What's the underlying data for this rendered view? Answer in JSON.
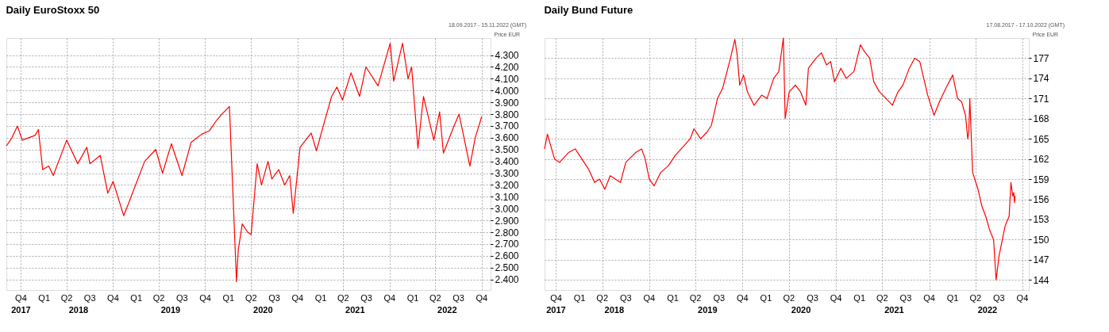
{
  "chart_data": [
    {
      "type": "line",
      "title": "Daily EuroStoxx 50",
      "subtitle": "18.09.2017 - 15.11.2022 (GMT)",
      "ylabel": "Price EUR",
      "x": [
        "2017-09-18",
        "2017-10-10",
        "2017-11-01",
        "2017-11-20",
        "2017-12-15",
        "2018-01-10",
        "2018-01-23",
        "2018-02-09",
        "2018-03-05",
        "2018-03-23",
        "2018-05-15",
        "2018-06-28",
        "2018-08-03",
        "2018-08-15",
        "2018-09-25",
        "2018-10-25",
        "2018-11-15",
        "2018-12-27",
        "2019-01-20",
        "2019-03-20",
        "2019-05-03",
        "2019-05-30",
        "2019-07-04",
        "2019-08-15",
        "2019-09-20",
        "2019-11-01",
        "2019-12-02",
        "2019-12-31",
        "2020-01-20",
        "2020-02-19",
        "2020-03-18",
        "2020-03-25",
        "2020-04-10",
        "2020-05-01",
        "2020-05-15",
        "2020-06-08",
        "2020-06-25",
        "2020-07-21",
        "2020-08-05",
        "2020-09-01",
        "2020-09-25",
        "2020-10-15",
        "2020-10-29",
        "2020-11-25",
        "2021-01-08",
        "2021-01-29",
        "2021-02-25",
        "2021-03-30",
        "2021-04-20",
        "2021-05-12",
        "2021-06-15",
        "2021-07-19",
        "2021-08-13",
        "2021-09-30",
        "2021-11-17",
        "2021-12-01",
        "2022-01-05",
        "2022-01-27",
        "2022-02-10",
        "2022-03-07",
        "2022-03-29",
        "2022-05-09",
        "2022-06-01",
        "2022-06-16",
        "2022-07-28",
        "2022-08-17",
        "2022-09-29",
        "2022-10-20",
        "2022-11-15"
      ],
      "series": [
        {
          "color": "#ff0000",
          "values": [
            3530,
            3600,
            3700,
            3580,
            3600,
            3620,
            3670,
            3330,
            3360,
            3280,
            3580,
            3380,
            3520,
            3380,
            3450,
            3130,
            3230,
            2940,
            3070,
            3400,
            3500,
            3300,
            3550,
            3280,
            3560,
            3630,
            3660,
            3750,
            3800,
            3865,
            2380,
            2650,
            2870,
            2800,
            2780,
            3380,
            3200,
            3400,
            3250,
            3330,
            3200,
            3280,
            2960,
            3520,
            3640,
            3490,
            3700,
            3950,
            4030,
            3920,
            4150,
            3950,
            4200,
            4040,
            4400,
            4080,
            4400,
            4100,
            4200,
            3510,
            3950,
            3580,
            3820,
            3470,
            3700,
            3800,
            3360,
            3600,
            3780
          ]
        }
      ],
      "xlim": [
        "2017-09-18",
        "2022-12-20"
      ],
      "xticks": [
        {
          "value": "2017-11-15",
          "label": "Q4"
        },
        {
          "value": "2018-02-15",
          "label": "Q1"
        },
        {
          "value": "2018-05-15",
          "label": "Q2"
        },
        {
          "value": "2018-08-15",
          "label": "Q3"
        },
        {
          "value": "2018-11-15",
          "label": "Q4"
        },
        {
          "value": "2019-02-15",
          "label": "Q1"
        },
        {
          "value": "2019-05-15",
          "label": "Q2"
        },
        {
          "value": "2019-08-15",
          "label": "Q3"
        },
        {
          "value": "2019-11-15",
          "label": "Q4"
        },
        {
          "value": "2020-02-15",
          "label": "Q1"
        },
        {
          "value": "2020-05-15",
          "label": "Q2"
        },
        {
          "value": "2020-08-15",
          "label": "Q3"
        },
        {
          "value": "2020-11-15",
          "label": "Q4"
        },
        {
          "value": "2021-02-15",
          "label": "Q1"
        },
        {
          "value": "2021-05-15",
          "label": "Q2"
        },
        {
          "value": "2021-08-15",
          "label": "Q3"
        },
        {
          "value": "2021-11-15",
          "label": "Q4"
        },
        {
          "value": "2022-02-15",
          "label": "Q1"
        },
        {
          "value": "2022-05-15",
          "label": "Q2"
        },
        {
          "value": "2022-08-15",
          "label": "Q3"
        },
        {
          "value": "2022-11-15",
          "label": "Q4"
        }
      ],
      "x2ticks": [
        {
          "value": "2017-11-15",
          "label": "2017"
        },
        {
          "value": "2018-07-01",
          "label": "2018"
        },
        {
          "value": "2019-07-01",
          "label": "2019"
        },
        {
          "value": "2020-07-01",
          "label": "2020"
        },
        {
          "value": "2021-07-01",
          "label": "2021"
        },
        {
          "value": "2022-07-01",
          "label": "2022"
        }
      ],
      "ylim": [
        2310,
        4445
      ],
      "yticks": [
        {
          "value": 2400,
          "label": "2.400"
        },
        {
          "value": 2500,
          "label": "2.500"
        },
        {
          "value": 2600,
          "label": "2.600"
        },
        {
          "value": 2700,
          "label": "2.700"
        },
        {
          "value": 2800,
          "label": "2.800"
        },
        {
          "value": 2900,
          "label": "2.900"
        },
        {
          "value": 3000,
          "label": "3.000"
        },
        {
          "value": 3100,
          "label": "3.100"
        },
        {
          "value": 3200,
          "label": "3.200"
        },
        {
          "value": 3300,
          "label": "3.300"
        },
        {
          "value": 3400,
          "label": "3.400"
        },
        {
          "value": 3500,
          "label": "3.500"
        },
        {
          "value": 3600,
          "label": "3.600"
        },
        {
          "value": 3700,
          "label": "3.700"
        },
        {
          "value": 3800,
          "label": "3.800"
        },
        {
          "value": 3900,
          "label": "3.900"
        },
        {
          "value": 4000,
          "label": "4.000"
        },
        {
          "value": 4100,
          "label": "4.100"
        },
        {
          "value": 4200,
          "label": "4.200"
        },
        {
          "value": 4300,
          "label": "4.300"
        }
      ],
      "x2lim": [
        "2017-09-18",
        "2022-12-20"
      ],
      "grid": true
    },
    {
      "type": "line",
      "title": "Daily Bund Future",
      "subtitle": "17.08.2017 - 17.10.2022 (GMT)",
      "ylabel": "Price EUR",
      "x": [
        "2017-10-01",
        "2017-10-12",
        "2017-11-09",
        "2017-11-29",
        "2018-01-04",
        "2018-01-29",
        "2018-02-24",
        "2018-03-22",
        "2018-04-15",
        "2018-05-04",
        "2018-05-25",
        "2018-06-15",
        "2018-07-25",
        "2018-08-15",
        "2018-09-24",
        "2018-10-16",
        "2018-10-30",
        "2018-11-15",
        "2018-12-04",
        "2018-12-30",
        "2019-01-29",
        "2019-02-24",
        "2019-04-01",
        "2019-04-24",
        "2019-05-09",
        "2019-06-04",
        "2019-06-29",
        "2019-07-16",
        "2019-08-09",
        "2019-08-29",
        "2019-09-29",
        "2019-10-16",
        "2019-10-25",
        "2019-11-04",
        "2019-11-19",
        "2019-12-04",
        "2019-12-30",
        "2020-01-29",
        "2020-02-19",
        "2020-03-16",
        "2020-04-05",
        "2020-04-23",
        "2020-04-30",
        "2020-05-16",
        "2020-06-09",
        "2020-06-29",
        "2020-07-20",
        "2020-07-30",
        "2020-08-29",
        "2020-09-19",
        "2020-10-09",
        "2020-10-25",
        "2020-11-09",
        "2020-12-04",
        "2020-12-25",
        "2021-01-24",
        "2021-02-19",
        "2021-03-06",
        "2021-03-27",
        "2021-04-12",
        "2021-05-04",
        "2021-05-30",
        "2021-06-24",
        "2021-07-16",
        "2021-08-04",
        "2021-08-29",
        "2021-09-19",
        "2021-10-09",
        "2021-11-09",
        "2021-12-04",
        "2021-12-25",
        "2022-01-19",
        "2022-02-15",
        "2022-03-06",
        "2022-03-22",
        "2022-04-06",
        "2022-04-15",
        "2022-04-19",
        "2022-04-23",
        "2022-05-04",
        "2022-05-25",
        "2022-06-09",
        "2022-06-24",
        "2022-07-09",
        "2022-07-25",
        "2022-08-04",
        "2022-08-15",
        "2022-09-08",
        "2022-09-24",
        "2022-10-01",
        "2022-10-08",
        "2022-10-12",
        "2022-10-15",
        "2022-10-17"
      ],
      "series": [
        {
          "color": "#ff0000",
          "values": [
            163.5,
            165.7,
            162.0,
            161.5,
            163,
            163.5,
            162,
            160.5,
            158.5,
            159,
            157.5,
            159.5,
            158.5,
            161.5,
            163,
            163.5,
            162,
            159,
            158,
            160,
            161,
            162.5,
            164,
            165,
            166.5,
            165,
            166,
            167,
            171,
            172.5,
            177,
            179.8,
            177.5,
            173,
            174.5,
            172,
            170,
            171.5,
            171,
            174,
            175,
            180,
            168,
            172,
            173,
            172,
            170,
            175.5,
            177,
            177.8,
            176,
            176.5,
            173.5,
            175.5,
            174,
            175,
            179,
            178,
            177,
            173.5,
            172,
            171,
            170,
            172,
            173,
            175.5,
            177,
            176.5,
            171.5,
            168.5,
            170.5,
            172.5,
            174.5,
            171,
            170.5,
            168.5,
            165,
            166,
            171,
            160,
            157.5,
            155,
            153.5,
            151.5,
            150,
            144,
            147.5,
            152,
            153.5,
            158.5,
            156.5,
            157,
            155.5,
            156.5
          ]
        }
      ],
      "xlim": [
        "2017-10-01",
        "2022-12-10"
      ],
      "xticks": [
        {
          "value": "2017-11-15",
          "label": "Q4"
        },
        {
          "value": "2018-02-15",
          "label": "Q1"
        },
        {
          "value": "2018-05-15",
          "label": "Q2"
        },
        {
          "value": "2018-08-15",
          "label": "Q3"
        },
        {
          "value": "2018-11-15",
          "label": "Q4"
        },
        {
          "value": "2019-02-15",
          "label": "Q1"
        },
        {
          "value": "2019-05-15",
          "label": "Q2"
        },
        {
          "value": "2019-08-15",
          "label": "Q3"
        },
        {
          "value": "2019-11-15",
          "label": "Q4"
        },
        {
          "value": "2020-02-15",
          "label": "Q1"
        },
        {
          "value": "2020-05-15",
          "label": "Q2"
        },
        {
          "value": "2020-08-15",
          "label": "Q3"
        },
        {
          "value": "2020-11-15",
          "label": "Q4"
        },
        {
          "value": "2021-02-15",
          "label": "Q1"
        },
        {
          "value": "2021-05-15",
          "label": "Q2"
        },
        {
          "value": "2021-08-15",
          "label": "Q3"
        },
        {
          "value": "2021-11-15",
          "label": "Q4"
        },
        {
          "value": "2022-02-15",
          "label": "Q1"
        },
        {
          "value": "2022-05-15",
          "label": "Q2"
        },
        {
          "value": "2022-08-15",
          "label": "Q3"
        },
        {
          "value": "2022-11-15",
          "label": "Q4"
        }
      ],
      "x2ticks": [
        {
          "value": "2017-11-15",
          "label": "2017"
        },
        {
          "value": "2018-07-01",
          "label": "2018"
        },
        {
          "value": "2019-07-01",
          "label": "2019"
        },
        {
          "value": "2020-07-01",
          "label": "2020"
        },
        {
          "value": "2021-07-01",
          "label": "2021"
        },
        {
          "value": "2022-07-01",
          "label": "2022"
        }
      ],
      "ylim": [
        142.5,
        180
      ],
      "yticks": [
        144,
        147,
        150,
        153,
        156,
        159,
        162,
        165,
        168,
        171,
        174,
        177
      ],
      "x2lim": [
        "2017-10-01",
        "2022-12-10"
      ],
      "grid": true
    }
  ]
}
